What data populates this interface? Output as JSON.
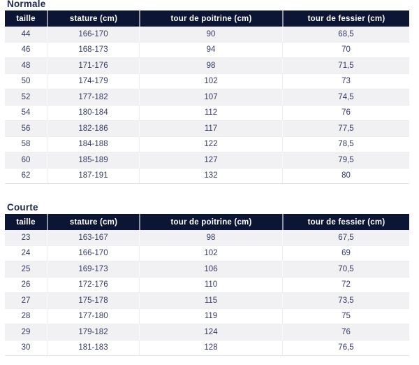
{
  "columns": [
    "taille",
    "stature (cm)",
    "tour de poitrine (cm)",
    "tour de fessier (cm)"
  ],
  "tables": [
    {
      "title": "Normale",
      "rows": [
        [
          "44",
          "166-170",
          "90",
          "68,5"
        ],
        [
          "46",
          "168-173",
          "94",
          "70"
        ],
        [
          "48",
          "171-176",
          "98",
          "71,5"
        ],
        [
          "50",
          "174-179",
          "102",
          "73"
        ],
        [
          "52",
          "177-182",
          "107",
          "74,5"
        ],
        [
          "54",
          "180-184",
          "112",
          "76"
        ],
        [
          "56",
          "182-186",
          "117",
          "77,5"
        ],
        [
          "58",
          "184-188",
          "122",
          "78,5"
        ],
        [
          "60",
          "185-189",
          "127",
          "79,5"
        ],
        [
          "62",
          "187-191",
          "132",
          "80"
        ]
      ]
    },
    {
      "title": "Courte",
      "rows": [
        [
          "23",
          "163-167",
          "98",
          "67,5"
        ],
        [
          "24",
          "166-170",
          "102",
          "69"
        ],
        [
          "25",
          "169-173",
          "106",
          "70,5"
        ],
        [
          "26",
          "172-176",
          "110",
          "72"
        ],
        [
          "27",
          "175-178",
          "115",
          "73,5"
        ],
        [
          "28",
          "177-180",
          "119",
          "75"
        ],
        [
          "29",
          "179-182",
          "124",
          "76"
        ],
        [
          "30",
          "181-183",
          "128",
          "76,5"
        ]
      ]
    }
  ],
  "colors": {
    "header_bg": "#0d1534",
    "header_text": "#ffffff",
    "body_text": "#353c62",
    "title_text": "#222b4c",
    "alt_row_bg": "#f1f1f4",
    "row_bg": "#ffffff",
    "divider": "#ececf1"
  }
}
